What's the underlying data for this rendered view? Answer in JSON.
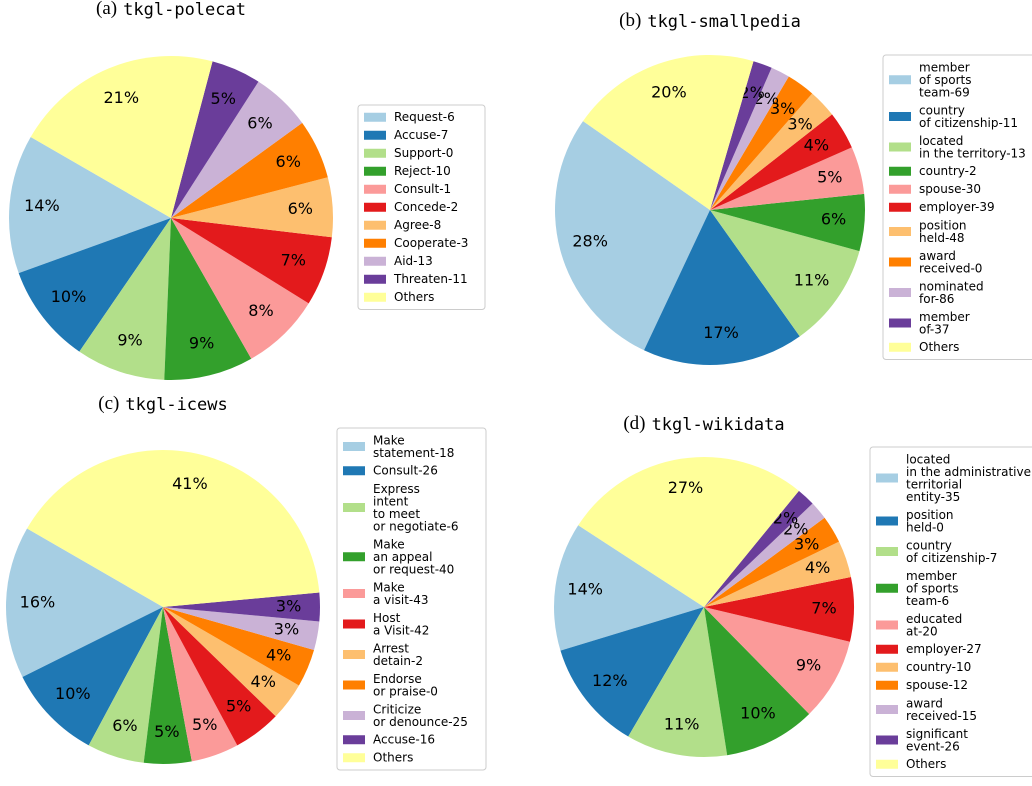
{
  "chart_data": [
    {
      "type": "pie",
      "panel_label": "(a)",
      "title": "tkgl-polecat",
      "categories": [
        "Request-6",
        "Accuse-7",
        "Support-0",
        "Reject-10",
        "Consult-1",
        "Concede-2",
        "Agree-8",
        "Cooperate-3",
        "Aid-13",
        "Threaten-11",
        "Others"
      ],
      "values": [
        14,
        10,
        9,
        9,
        8,
        7,
        6,
        6,
        6,
        5,
        21
      ],
      "value_labels": [
        "14%",
        "10%",
        "9%",
        "9%",
        "8%",
        "7%",
        "6%",
        "6%",
        "6%",
        "5%",
        "21%"
      ],
      "colors": [
        "#a6cee3",
        "#1f78b4",
        "#b2df8a",
        "#33a02c",
        "#fb9a99",
        "#e31a1c",
        "#fdbf6f",
        "#ff7f00",
        "#cab2d6",
        "#6a3d9a",
        "#ffff99"
      ]
    },
    {
      "type": "pie",
      "panel_label": "(b)",
      "title": "tkgl-smallpedia",
      "categories": [
        "member\nof sports\nteam-69",
        "country\nof citizenship-11",
        "located\nin the territory-13",
        "country-2",
        "spouse-30",
        "employer-39",
        "position\nheld-48",
        "award\nreceived-0",
        "nominated\nfor-86",
        "member\nof-37",
        "Others"
      ],
      "values": [
        28,
        17,
        11,
        6,
        5,
        4,
        3,
        3,
        2,
        2,
        20
      ],
      "value_labels": [
        "28%",
        "17%",
        "11%",
        "6%",
        "5%",
        "4%",
        "3%",
        "3%",
        "2%",
        "2%",
        "20%"
      ],
      "colors": [
        "#a6cee3",
        "#1f78b4",
        "#b2df8a",
        "#33a02c",
        "#fb9a99",
        "#e31a1c",
        "#fdbf6f",
        "#ff7f00",
        "#cab2d6",
        "#6a3d9a",
        "#ffff99"
      ]
    },
    {
      "type": "pie",
      "panel_label": "(c)",
      "title": "tkgl-icews",
      "categories": [
        "Make\nstatement-18",
        "Consult-26",
        "Express\nintent\nto meet\nor negotiate-6",
        "Make\nan appeal\nor request-40",
        "Make\na visit-43",
        "Host\na Visit-42",
        "Arrest\ndetain-2",
        "Endorse\nor praise-0",
        "Criticize\nor denounce-25",
        "Accuse-16",
        "Others"
      ],
      "values": [
        16,
        10,
        6,
        5,
        5,
        5,
        4,
        4,
        3,
        3,
        41
      ],
      "value_labels": [
        "16%",
        "10%",
        "6%",
        "5%",
        "5%",
        "5%",
        "4%",
        "4%",
        "3%",
        "3%",
        "41%"
      ],
      "colors": [
        "#a6cee3",
        "#1f78b4",
        "#b2df8a",
        "#33a02c",
        "#fb9a99",
        "#e31a1c",
        "#fdbf6f",
        "#ff7f00",
        "#cab2d6",
        "#6a3d9a",
        "#ffff99"
      ]
    },
    {
      "type": "pie",
      "panel_label": "(d)",
      "title": "tkgl-wikidata",
      "categories": [
        "located\nin the administrative\nterritorial\nentity-35",
        "position\nheld-0",
        "country\nof citizenship-7",
        "member\nof sports\nteam-6",
        "educated\nat-20",
        "employer-27",
        "country-10",
        "spouse-12",
        "award\nreceived-15",
        "significant\nevent-26",
        "Others"
      ],
      "values": [
        14,
        12,
        11,
        10,
        9,
        7,
        4,
        3,
        2,
        2,
        27
      ],
      "value_labels": [
        "14%",
        "12%",
        "11%",
        "10%",
        "9%",
        "7%",
        "4%",
        "3%",
        "2%",
        "2%",
        "27%"
      ],
      "colors": [
        "#a6cee3",
        "#1f78b4",
        "#b2df8a",
        "#33a02c",
        "#fb9a99",
        "#e31a1c",
        "#fdbf6f",
        "#ff7f00",
        "#cab2d6",
        "#6a3d9a",
        "#ffff99"
      ]
    }
  ]
}
